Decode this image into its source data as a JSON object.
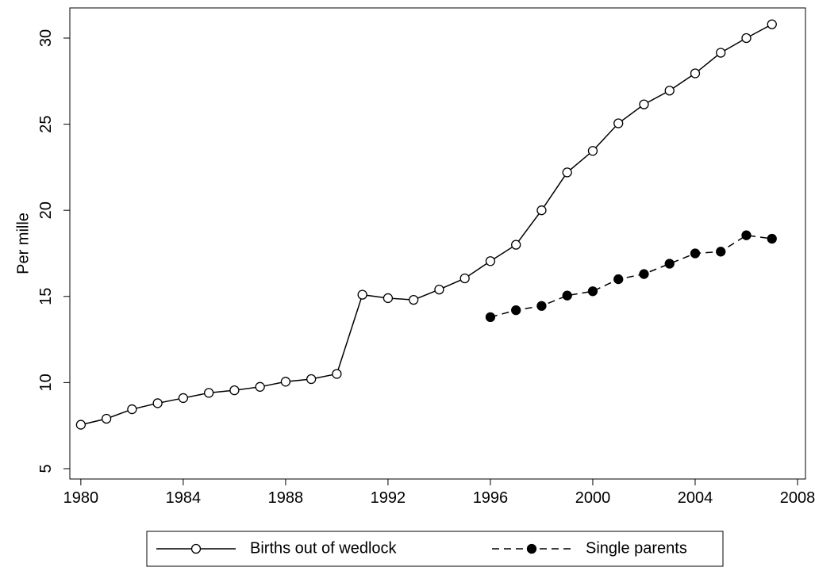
{
  "chart_data": {
    "type": "line",
    "y_label": "Per mille",
    "x": [
      1980,
      1981,
      1982,
      1983,
      1984,
      1985,
      1986,
      1987,
      1988,
      1989,
      1990,
      1991,
      1992,
      1993,
      1994,
      1995,
      1996,
      1997,
      1998,
      1999,
      2000,
      2001,
      2002,
      2003,
      2004,
      2005,
      2006,
      2007
    ],
    "series": [
      {
        "name": "Births out of wedlock",
        "color": "#000000",
        "marker": "hollow",
        "dash": "solid",
        "values": [
          7.55,
          7.9,
          8.45,
          8.8,
          9.1,
          9.4,
          9.55,
          9.75,
          10.05,
          10.2,
          10.5,
          15.1,
          14.9,
          14.8,
          15.4,
          16.05,
          17.05,
          18.0,
          20.0,
          22.2,
          23.45,
          25.05,
          26.15,
          26.95,
          27.95,
          29.15,
          30.0,
          30.8
        ]
      },
      {
        "name": "Single parents",
        "color": "#000000",
        "marker": "filled",
        "dash": "dashed",
        "values": [
          null,
          null,
          null,
          null,
          null,
          null,
          null,
          null,
          null,
          null,
          null,
          null,
          null,
          null,
          null,
          null,
          13.8,
          14.2,
          14.45,
          15.05,
          15.3,
          16.0,
          16.3,
          16.9,
          17.5,
          17.6,
          18.55,
          18.35
        ]
      }
    ],
    "xlim": [
      1979.57,
      2008.31
    ],
    "xticks": [
      1980,
      1984,
      1988,
      1992,
      1996,
      2000,
      2004,
      2008
    ],
    "ylim": [
      4.4,
      31.75
    ],
    "yticks": [
      5,
      10,
      15,
      20,
      25,
      30
    ],
    "legend": "bottom"
  }
}
